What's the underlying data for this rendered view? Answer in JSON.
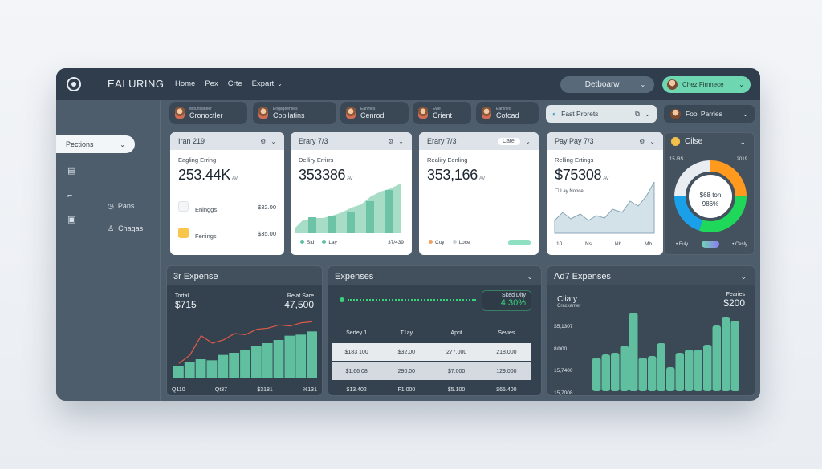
{
  "header": {
    "brand": "EALURING",
    "nav": [
      "Home",
      "Pex",
      "Crte",
      "Expart"
    ],
    "dashboard_select": "Detboarw",
    "user": "Chez Fimnece"
  },
  "sidebar": {
    "select": "Pections",
    "links": [
      "Pans",
      "Chagas"
    ]
  },
  "chips": [
    {
      "small": "Mountaineer",
      "label": "Cronoctler"
    },
    {
      "small": "Engageenses",
      "label": "Copilatins"
    },
    {
      "small": "Eanmes",
      "label": "Cenrod"
    },
    {
      "small": "Ewe",
      "label": "Crient"
    },
    {
      "small": "Eamned",
      "label": "Cofcad"
    }
  ],
  "pills": {
    "fast_prorets": "Fast Prorets",
    "fool_parries": "Fool Parries"
  },
  "cards": [
    {
      "title": "Iran 219",
      "sub": "Eagling Erring",
      "value": "253.44K",
      "unit": "AV",
      "rows": [
        {
          "label": "Eninggs",
          "value": "$32.00"
        },
        {
          "label": "Fenings",
          "value": "$35.00"
        }
      ]
    },
    {
      "title": "Erary 7/3",
      "sub": "Delliry Errirrs",
      "value": "353386",
      "unit": "AV",
      "legend": [
        "Sid",
        "Lay",
        "37/439"
      ]
    },
    {
      "title": "Erary 7/3",
      "badge": "Catel",
      "sub": "Realiry Eenling",
      "value": "353,166",
      "unit": "AV",
      "legend": [
        "Coy",
        "Loce"
      ]
    },
    {
      "title": "Pay Pay 7/3",
      "sub": "Relling Ertings",
      "value": "$75308",
      "unit": "AV",
      "note": "Lay Nonce",
      "xticks": [
        "10",
        "Ns",
        "Nb",
        "Mb"
      ]
    }
  ],
  "donut": {
    "title": "Cilse",
    "left_label": "15 /8S",
    "right_label": "2019",
    "center_1": "$68 ton",
    "center_2": "986%",
    "legend": [
      "Fuly",
      "Cesly"
    ],
    "slices": [
      {
        "value": 25,
        "color": "#ff9a1f"
      },
      {
        "value": 30,
        "color": "#1fd85a"
      },
      {
        "value": 20,
        "color": "#1aa0e8"
      },
      {
        "value": 25,
        "color": "#e9edf1"
      }
    ]
  },
  "panel_left": {
    "title": "3r Expense",
    "left_label": "Tortal",
    "left_value": "$715",
    "right_label": "Relat Sare",
    "right_value": "47,500",
    "xticks": [
      "Q110",
      "Qt37",
      "$3181",
      "%131"
    ],
    "area": [
      12,
      15,
      18,
      17,
      22,
      24,
      27,
      30,
      33,
      36,
      40,
      41,
      44
    ],
    "line": [
      14,
      22,
      40,
      33,
      36,
      42,
      41,
      46,
      47,
      50,
      49,
      52,
      53
    ]
  },
  "panel_mid": {
    "title": "Expenses",
    "badge_label": "Sked Dity",
    "badge_value": "4,30%",
    "columns": [
      "Sertey 1",
      "T1ay",
      "Aprit",
      "Sevies"
    ],
    "rows": [
      [
        "$183 100",
        "$32.00",
        "277.000",
        "218.000"
      ],
      [
        "$1.66 08",
        "290.00",
        "$7.000",
        "129.000"
      ],
      [
        "$13.402",
        "F1.000",
        "$5.100",
        "$65.400"
      ]
    ]
  },
  "panel_right": {
    "title": "Ad7 Expenses",
    "left_label": "Cliaty",
    "left_sub": "Crackanter",
    "right_label": "Fearies",
    "right_value": "$200",
    "yticks": [
      "$5,1307",
      "8/000",
      "15,7400",
      "15,7008"
    ],
    "bars": [
      42,
      46,
      48,
      57,
      98,
      42,
      44,
      60,
      30,
      48,
      52,
      52,
      58,
      82,
      92,
      88
    ]
  },
  "colors": {
    "teal": "#5fbf9f",
    "teal_light": "#a7dcc6",
    "red": "#e05a4a",
    "green_text": "#38d47a"
  }
}
